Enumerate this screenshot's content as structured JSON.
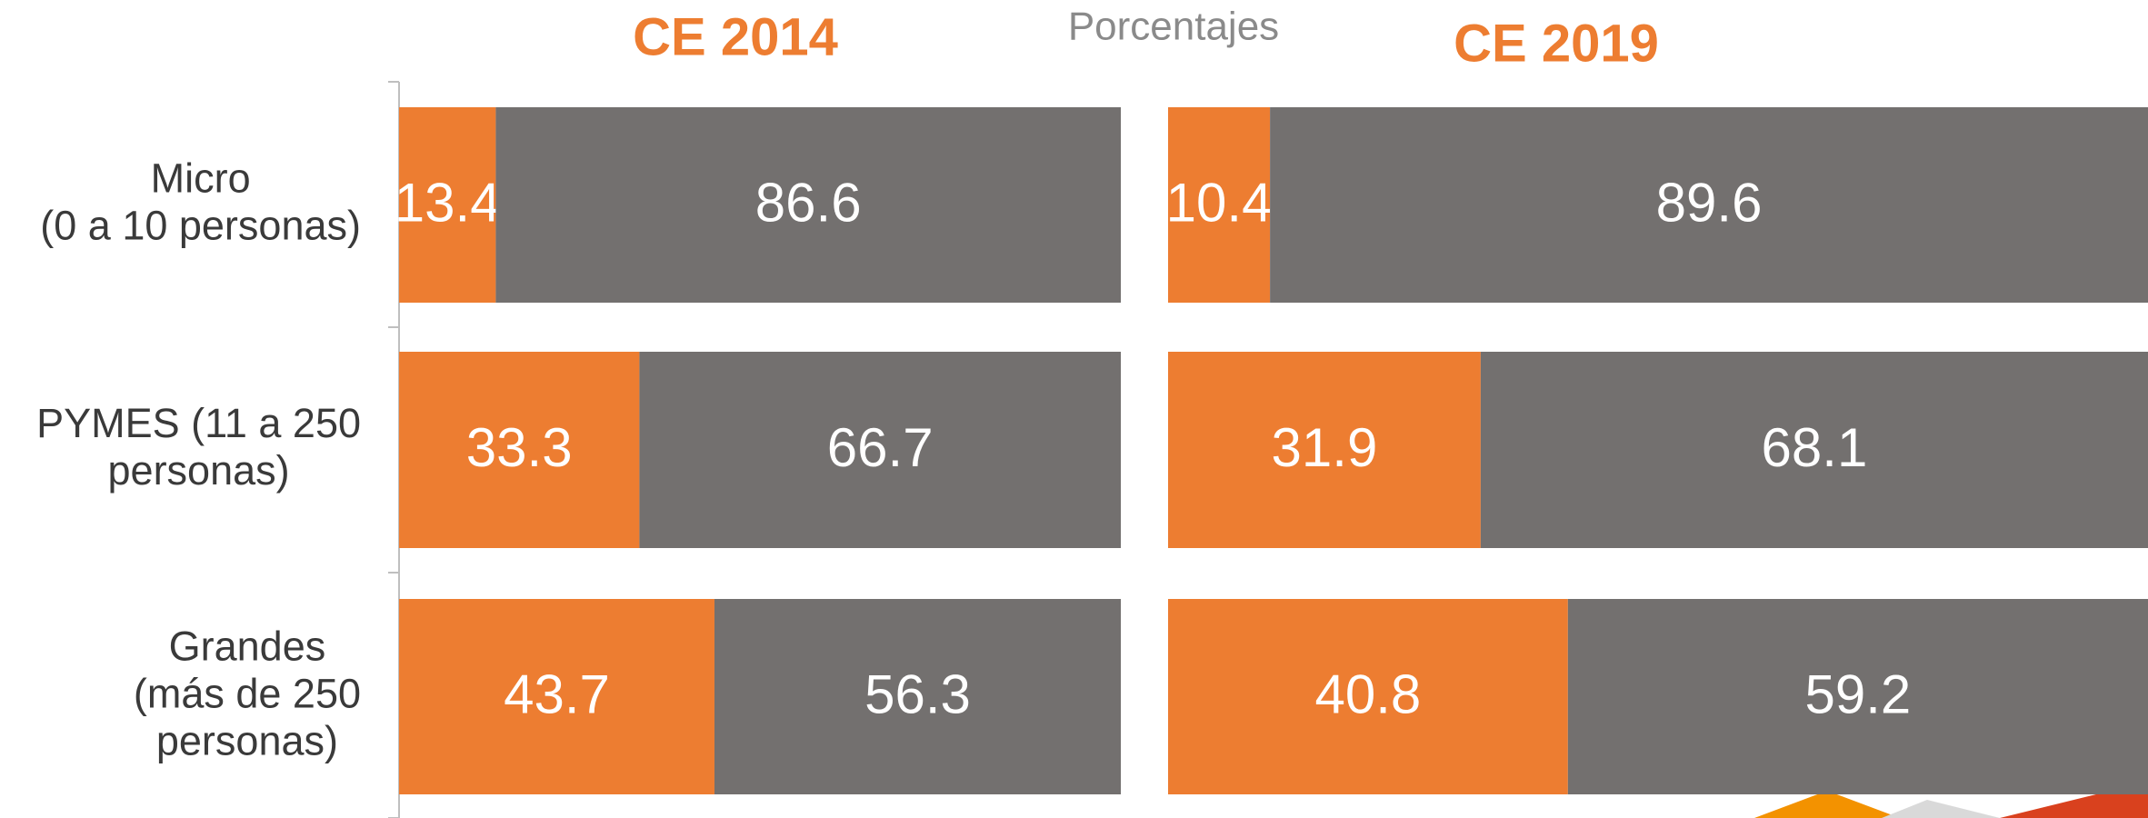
{
  "title": "Porcentajes",
  "chart_data": [
    {
      "type": "bar",
      "orientation": "horizontal",
      "stacked": true,
      "title": "CE 2014",
      "categories": [
        [
          "Micro",
          "(0 a 10 personas)"
        ],
        [
          "PYMES (11 a 250",
          "personas)"
        ],
        [
          "Grandes",
          "(más de 250",
          "personas)"
        ]
      ],
      "xlim": [
        0,
        100
      ],
      "series": [
        {
          "color": "#ED7D31",
          "values": [
            13.4,
            33.3,
            43.7
          ]
        },
        {
          "color": "#73706F",
          "values": [
            86.6,
            66.7,
            56.3
          ]
        }
      ]
    },
    {
      "type": "bar",
      "orientation": "horizontal",
      "stacked": true,
      "title": "CE 2019",
      "xlim": [
        0,
        100
      ],
      "series": [
        {
          "color": "#ED7D31",
          "values": [
            10.4,
            31.9,
            40.8
          ]
        },
        {
          "color": "#73706F",
          "values": [
            89.6,
            68.1,
            59.2
          ]
        }
      ]
    }
  ]
}
